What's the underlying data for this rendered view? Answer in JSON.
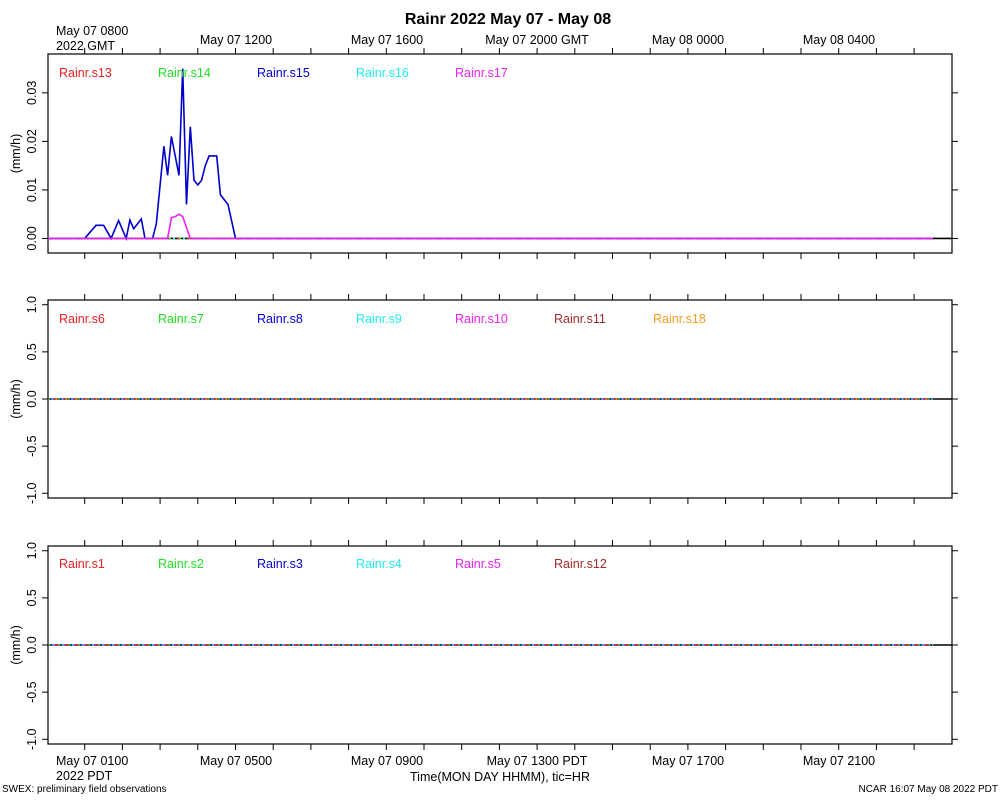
{
  "title": "Rainr 2022 May 07 - May 08",
  "footer_left": "SWEX: preliminary field observations",
  "footer_right": "NCAR 16:07 May 08 2022 PDT",
  "xlabel": "Time(MON DAY HHMM), tic=HR",
  "top_axis": {
    "first_label_line1": "May 07 0800",
    "first_label_line2": "2022 GMT",
    "labels": [
      "May 07 1200",
      "May 07 1600",
      "May 07 2000 GMT",
      "May 08 0000",
      "May 08 0400"
    ]
  },
  "bottom_axis": {
    "first_label_line1": "May 07 0100",
    "first_label_line2": "2022 PDT",
    "labels": [
      "May 07 0500",
      "May 07 0900",
      "May 07 1300 PDT",
      "May 07 1700",
      "May 07 2100"
    ]
  },
  "colors": {
    "red": "#e8201f",
    "green": "#22e022",
    "blue": "#0000cc",
    "cyan": "#22eeee",
    "magenta": "#ee22ee",
    "brown": "#a52a2a",
    "orange": "#f0a020"
  },
  "chart_data": [
    {
      "type": "line",
      "ylabel": "(mm/h)",
      "ylim": [
        -0.003,
        0.038
      ],
      "x_hours_range": [
        0,
        23.5
      ],
      "yticks": [
        "0.00",
        "0.01",
        "0.02",
        "0.03"
      ],
      "series": [
        {
          "name": "Rainr.s13",
          "color": "red",
          "x": [
            0,
            23.5
          ],
          "y": [
            0,
            0
          ]
        },
        {
          "name": "Rainr.s14",
          "color": "green",
          "x": [
            0,
            23.5
          ],
          "y": [
            0,
            0
          ]
        },
        {
          "name": "Rainr.s15",
          "color": "blue",
          "x": [
            0,
            1.0,
            1.3,
            1.5,
            1.7,
            1.9,
            2.1,
            2.2,
            2.3,
            2.5,
            2.6,
            2.8,
            2.9,
            3.1,
            3.2,
            3.3,
            3.5,
            3.6,
            3.7,
            3.8,
            3.9,
            4.0,
            4.1,
            4.2,
            4.3,
            4.5,
            4.6,
            4.8,
            5.0,
            5.2,
            23.5
          ],
          "y": [
            0,
            0,
            0.0027,
            0.0027,
            0.0,
            0.0037,
            0.0,
            0.0038,
            0.002,
            0.004,
            0.0,
            0.0,
            0.003,
            0.019,
            0.013,
            0.021,
            0.013,
            0.035,
            0.007,
            0.023,
            0.012,
            0.011,
            0.012,
            0.015,
            0.017,
            0.017,
            0.009,
            0.007,
            0.0,
            0.0,
            0
          ]
        },
        {
          "name": "Rainr.s16",
          "color": "cyan",
          "x": [
            0,
            23.5
          ],
          "y": [
            0,
            0
          ]
        },
        {
          "name": "Rainr.s17",
          "color": "magenta",
          "x": [
            0,
            3.2,
            3.3,
            3.4,
            3.5,
            3.6,
            3.8,
            23.5
          ],
          "y": [
            0,
            0,
            0.0043,
            0.0045,
            0.005,
            0.0045,
            0.0,
            0
          ]
        }
      ]
    },
    {
      "type": "line",
      "ylabel": "(mm/h)",
      "ylim": [
        -1.05,
        1.05
      ],
      "x_hours_range": [
        0,
        23.5
      ],
      "yticks": [
        "-1.0",
        "-0.5",
        "0.0",
        "0.5",
        "1.0"
      ],
      "series": [
        {
          "name": "Rainr.s6",
          "color": "red",
          "x": [
            0,
            23.5
          ],
          "y": [
            0,
            0
          ]
        },
        {
          "name": "Rainr.s7",
          "color": "green",
          "x": [
            0,
            23.5
          ],
          "y": [
            0,
            0
          ]
        },
        {
          "name": "Rainr.s8",
          "color": "blue",
          "x": [
            0,
            23.5
          ],
          "y": [
            0,
            0
          ]
        },
        {
          "name": "Rainr.s9",
          "color": "cyan",
          "x": [
            0,
            23.5
          ],
          "y": [
            0,
            0
          ]
        },
        {
          "name": "Rainr.s10",
          "color": "magenta",
          "x": [
            0,
            23.5
          ],
          "y": [
            0,
            0
          ]
        },
        {
          "name": "Rainr.s11",
          "color": "brown",
          "x": [
            0,
            23.5
          ],
          "y": [
            0,
            0
          ]
        },
        {
          "name": "Rainr.s18",
          "color": "orange",
          "x": [
            0,
            23.5
          ],
          "y": [
            0,
            0
          ]
        }
      ]
    },
    {
      "type": "line",
      "ylabel": "(mm/h)",
      "ylim": [
        -1.05,
        1.05
      ],
      "x_hours_range": [
        0,
        23.5
      ],
      "yticks": [
        "-1.0",
        "-0.5",
        "0.0",
        "0.5",
        "1.0"
      ],
      "series": [
        {
          "name": "Rainr.s1",
          "color": "red",
          "x": [
            0,
            23.5
          ],
          "y": [
            0,
            0
          ]
        },
        {
          "name": "Rainr.s2",
          "color": "green",
          "x": [
            0,
            23.5
          ],
          "y": [
            0,
            0
          ]
        },
        {
          "name": "Rainr.s3",
          "color": "blue",
          "x": [
            0,
            23.5
          ],
          "y": [
            0,
            0
          ]
        },
        {
          "name": "Rainr.s4",
          "color": "cyan",
          "x": [
            0,
            23.5
          ],
          "y": [
            0,
            0
          ]
        },
        {
          "name": "Rainr.s5",
          "color": "magenta",
          "x": [
            0,
            23.5
          ],
          "y": [
            0,
            0
          ]
        },
        {
          "name": "Rainr.s12",
          "color": "brown",
          "x": [
            0,
            23.5
          ],
          "y": [
            0,
            0
          ]
        }
      ]
    }
  ]
}
